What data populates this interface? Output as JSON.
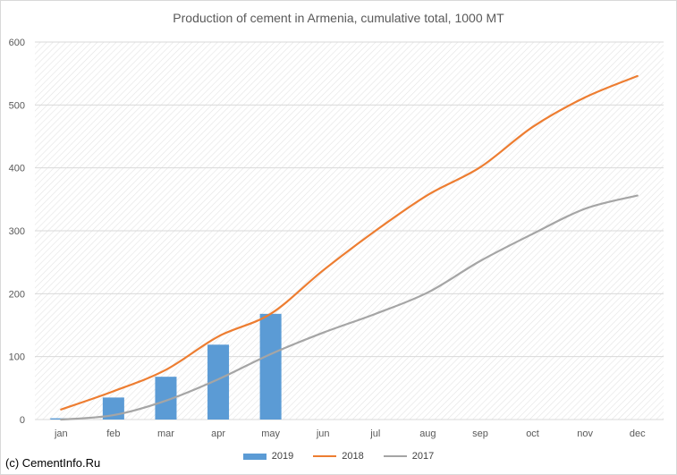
{
  "title": "Production of cement in Armenia, cumulative total, 1000 MT",
  "footer": "(c) CementInfo.Ru",
  "chart_data": {
    "type": "bar+line",
    "title": "Production of cement in Armenia, cumulative total, 1000 MT",
    "xlabel": "",
    "ylabel": "",
    "categories": [
      "jan",
      "feb",
      "mar",
      "apr",
      "may",
      "jun",
      "jul",
      "aug",
      "sep",
      "oct",
      "nov",
      "dec"
    ],
    "ylim": [
      0,
      600
    ],
    "yticks": [
      0,
      100,
      200,
      300,
      400,
      500,
      600
    ],
    "grid": true,
    "legend_position": "bottom",
    "series": [
      {
        "name": "2019",
        "type": "bar",
        "color": "#5b9bd5",
        "values": [
          2,
          35,
          68,
          119,
          168,
          null,
          null,
          null,
          null,
          null,
          null,
          null
        ]
      },
      {
        "name": "2018",
        "type": "line",
        "color": "#ed7d31",
        "values": [
          16,
          45,
          79,
          132,
          168,
          237,
          300,
          357,
          401,
          465,
          512,
          546
        ]
      },
      {
        "name": "2017",
        "type": "line",
        "color": "#a5a5a5",
        "values": [
          0,
          7,
          30,
          64,
          104,
          138,
          168,
          202,
          252,
          295,
          335,
          356
        ]
      }
    ]
  }
}
